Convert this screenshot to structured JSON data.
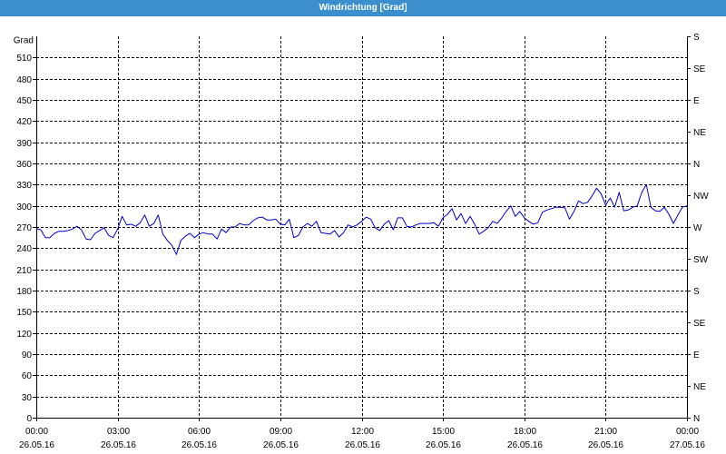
{
  "colors": {
    "title_bar": "#3a8fcc",
    "title_text": "#ffffff",
    "series": "#0000cc",
    "grid": "#000000",
    "axis": "#000000",
    "background": "#ffffff"
  },
  "chart_data": {
    "type": "line",
    "title": "Windrichtung [Grad]",
    "ylabel": "Grad",
    "ylim": [
      0,
      540
    ],
    "yticks": [
      0,
      30,
      60,
      90,
      120,
      150,
      180,
      210,
      240,
      270,
      300,
      330,
      360,
      390,
      420,
      450,
      480,
      510
    ],
    "y2_tick_values": [
      0,
      45,
      90,
      135,
      180,
      225,
      270,
      315,
      360,
      405,
      450,
      495,
      540
    ],
    "y2_tick_labels": [
      "N",
      "NE",
      "E",
      "SE",
      "S",
      "SW",
      "W",
      "NW",
      "N",
      "NE",
      "E",
      "SE",
      "S"
    ],
    "xlim": [
      "26.05.16 00:00",
      "27.05.16 00:00"
    ],
    "xticks": [
      {
        "time": "00:00",
        "date": "26.05.16"
      },
      {
        "time": "03:00",
        "date": "26.05.16"
      },
      {
        "time": "06:00",
        "date": "26.05.16"
      },
      {
        "time": "09:00",
        "date": "26.05.16"
      },
      {
        "time": "12:00",
        "date": "26.05.16"
      },
      {
        "time": "15:00",
        "date": "26.05.16"
      },
      {
        "time": "18:00",
        "date": "26.05.16"
      },
      {
        "time": "21:00",
        "date": "26.05.16"
      },
      {
        "time": "00:00",
        "date": "27.05.16"
      }
    ],
    "grid": true,
    "x": [
      "26.05.16 00:00",
      "26.05.16 00:10",
      "26.05.16 00:20",
      "26.05.16 00:30",
      "26.05.16 00:40",
      "26.05.16 00:50",
      "26.05.16 01:00",
      "26.05.16 01:10",
      "26.05.16 01:20",
      "26.05.16 01:30",
      "26.05.16 01:40",
      "26.05.16 01:50",
      "26.05.16 02:00",
      "26.05.16 02:10",
      "26.05.16 02:20",
      "26.05.16 02:30",
      "26.05.16 02:40",
      "26.05.16 02:50",
      "26.05.16 03:00",
      "26.05.16 03:10",
      "26.05.16 03:20",
      "26.05.16 03:30",
      "26.05.16 03:40",
      "26.05.16 03:50",
      "26.05.16 04:00",
      "26.05.16 04:10",
      "26.05.16 04:20",
      "26.05.16 04:30",
      "26.05.16 04:40",
      "26.05.16 04:50",
      "26.05.16 05:00",
      "26.05.16 05:10",
      "26.05.16 05:20",
      "26.05.16 05:30",
      "26.05.16 05:40",
      "26.05.16 05:50",
      "26.05.16 06:00",
      "26.05.16 06:10",
      "26.05.16 06:20",
      "26.05.16 06:30",
      "26.05.16 06:40",
      "26.05.16 06:50",
      "26.05.16 07:00",
      "26.05.16 07:10",
      "26.05.16 07:20",
      "26.05.16 07:30",
      "26.05.16 07:40",
      "26.05.16 07:50",
      "26.05.16 08:00",
      "26.05.16 08:10",
      "26.05.16 08:20",
      "26.05.16 08:30",
      "26.05.16 08:40",
      "26.05.16 08:50",
      "26.05.16 09:00",
      "26.05.16 09:10",
      "26.05.16 09:20",
      "26.05.16 09:30",
      "26.05.16 09:40",
      "26.05.16 09:50",
      "26.05.16 10:00",
      "26.05.16 10:10",
      "26.05.16 10:20",
      "26.05.16 10:30",
      "26.05.16 10:40",
      "26.05.16 10:50",
      "26.05.16 11:00",
      "26.05.16 11:10",
      "26.05.16 11:20",
      "26.05.16 11:30",
      "26.05.16 11:40",
      "26.05.16 11:50",
      "26.05.16 12:00",
      "26.05.16 12:10",
      "26.05.16 12:20",
      "26.05.16 12:30",
      "26.05.16 12:40",
      "26.05.16 12:50",
      "26.05.16 13:00",
      "26.05.16 13:10",
      "26.05.16 13:20",
      "26.05.16 13:30",
      "26.05.16 13:40",
      "26.05.16 13:50",
      "26.05.16 14:00",
      "26.05.16 14:10",
      "26.05.16 14:20",
      "26.05.16 14:30",
      "26.05.16 14:40",
      "26.05.16 14:50",
      "26.05.16 15:00",
      "26.05.16 15:10",
      "26.05.16 15:20",
      "26.05.16 15:30",
      "26.05.16 15:40",
      "26.05.16 15:50",
      "26.05.16 16:00",
      "26.05.16 16:10",
      "26.05.16 16:20",
      "26.05.16 16:30",
      "26.05.16 16:40",
      "26.05.16 16:50",
      "26.05.16 17:00",
      "26.05.16 17:10",
      "26.05.16 17:20",
      "26.05.16 17:30",
      "26.05.16 17:40",
      "26.05.16 17:50",
      "26.05.16 18:00",
      "26.05.16 18:10",
      "26.05.16 18:20",
      "26.05.16 18:30",
      "26.05.16 18:40",
      "26.05.16 18:50",
      "26.05.16 19:00",
      "26.05.16 19:10",
      "26.05.16 19:20",
      "26.05.16 19:30",
      "26.05.16 19:40",
      "26.05.16 19:50",
      "26.05.16 20:00",
      "26.05.16 20:10",
      "26.05.16 20:20",
      "26.05.16 20:30",
      "26.05.16 20:40",
      "26.05.16 20:50",
      "26.05.16 21:00",
      "26.05.16 21:10",
      "26.05.16 21:20",
      "26.05.16 21:30",
      "26.05.16 21:40",
      "26.05.16 21:50",
      "26.05.16 22:00",
      "26.05.16 22:10",
      "26.05.16 22:20",
      "26.05.16 22:30",
      "26.05.16 22:40",
      "26.05.16 22:50",
      "26.05.16 23:00",
      "26.05.16 23:10",
      "26.05.16 23:20",
      "26.05.16 23:30",
      "26.05.16 23:40",
      "26.05.16 23:50",
      "27.05.16 00:00"
    ],
    "series": [
      {
        "values": [
          268,
          266,
          255,
          255,
          261,
          264,
          264,
          265,
          267,
          271,
          266,
          253,
          252,
          261,
          265,
          269,
          258,
          255,
          267,
          285,
          273,
          274,
          271,
          276,
          287,
          271,
          275,
          287,
          260,
          251,
          244,
          231,
          251,
          257,
          261,
          255,
          260,
          262,
          260,
          260,
          253,
          267,
          262,
          270,
          270,
          275,
          273,
          273,
          279,
          283,
          284,
          280,
          280,
          281,
          274,
          273,
          281,
          255,
          258,
          270,
          275,
          271,
          278,
          262,
          261,
          260,
          265,
          256,
          262,
          273,
          270,
          273,
          278,
          284,
          281,
          269,
          265,
          274,
          279,
          266,
          283,
          283,
          271,
          270,
          273,
          275,
          275,
          275,
          276,
          271,
          283,
          288,
          296,
          280,
          289,
          275,
          285,
          274,
          260,
          264,
          269,
          278,
          275,
          283,
          292,
          300,
          285,
          292,
          283,
          278,
          274,
          276,
          291,
          294,
          296,
          298,
          298,
          297,
          281,
          292,
          307,
          303,
          305,
          314,
          325,
          317,
          301,
          311,
          298,
          319,
          293,
          294,
          298,
          300,
          319,
          330,
          298,
          293,
          292,
          298,
          288,
          275,
          287,
          298,
          300
        ]
      }
    ]
  }
}
